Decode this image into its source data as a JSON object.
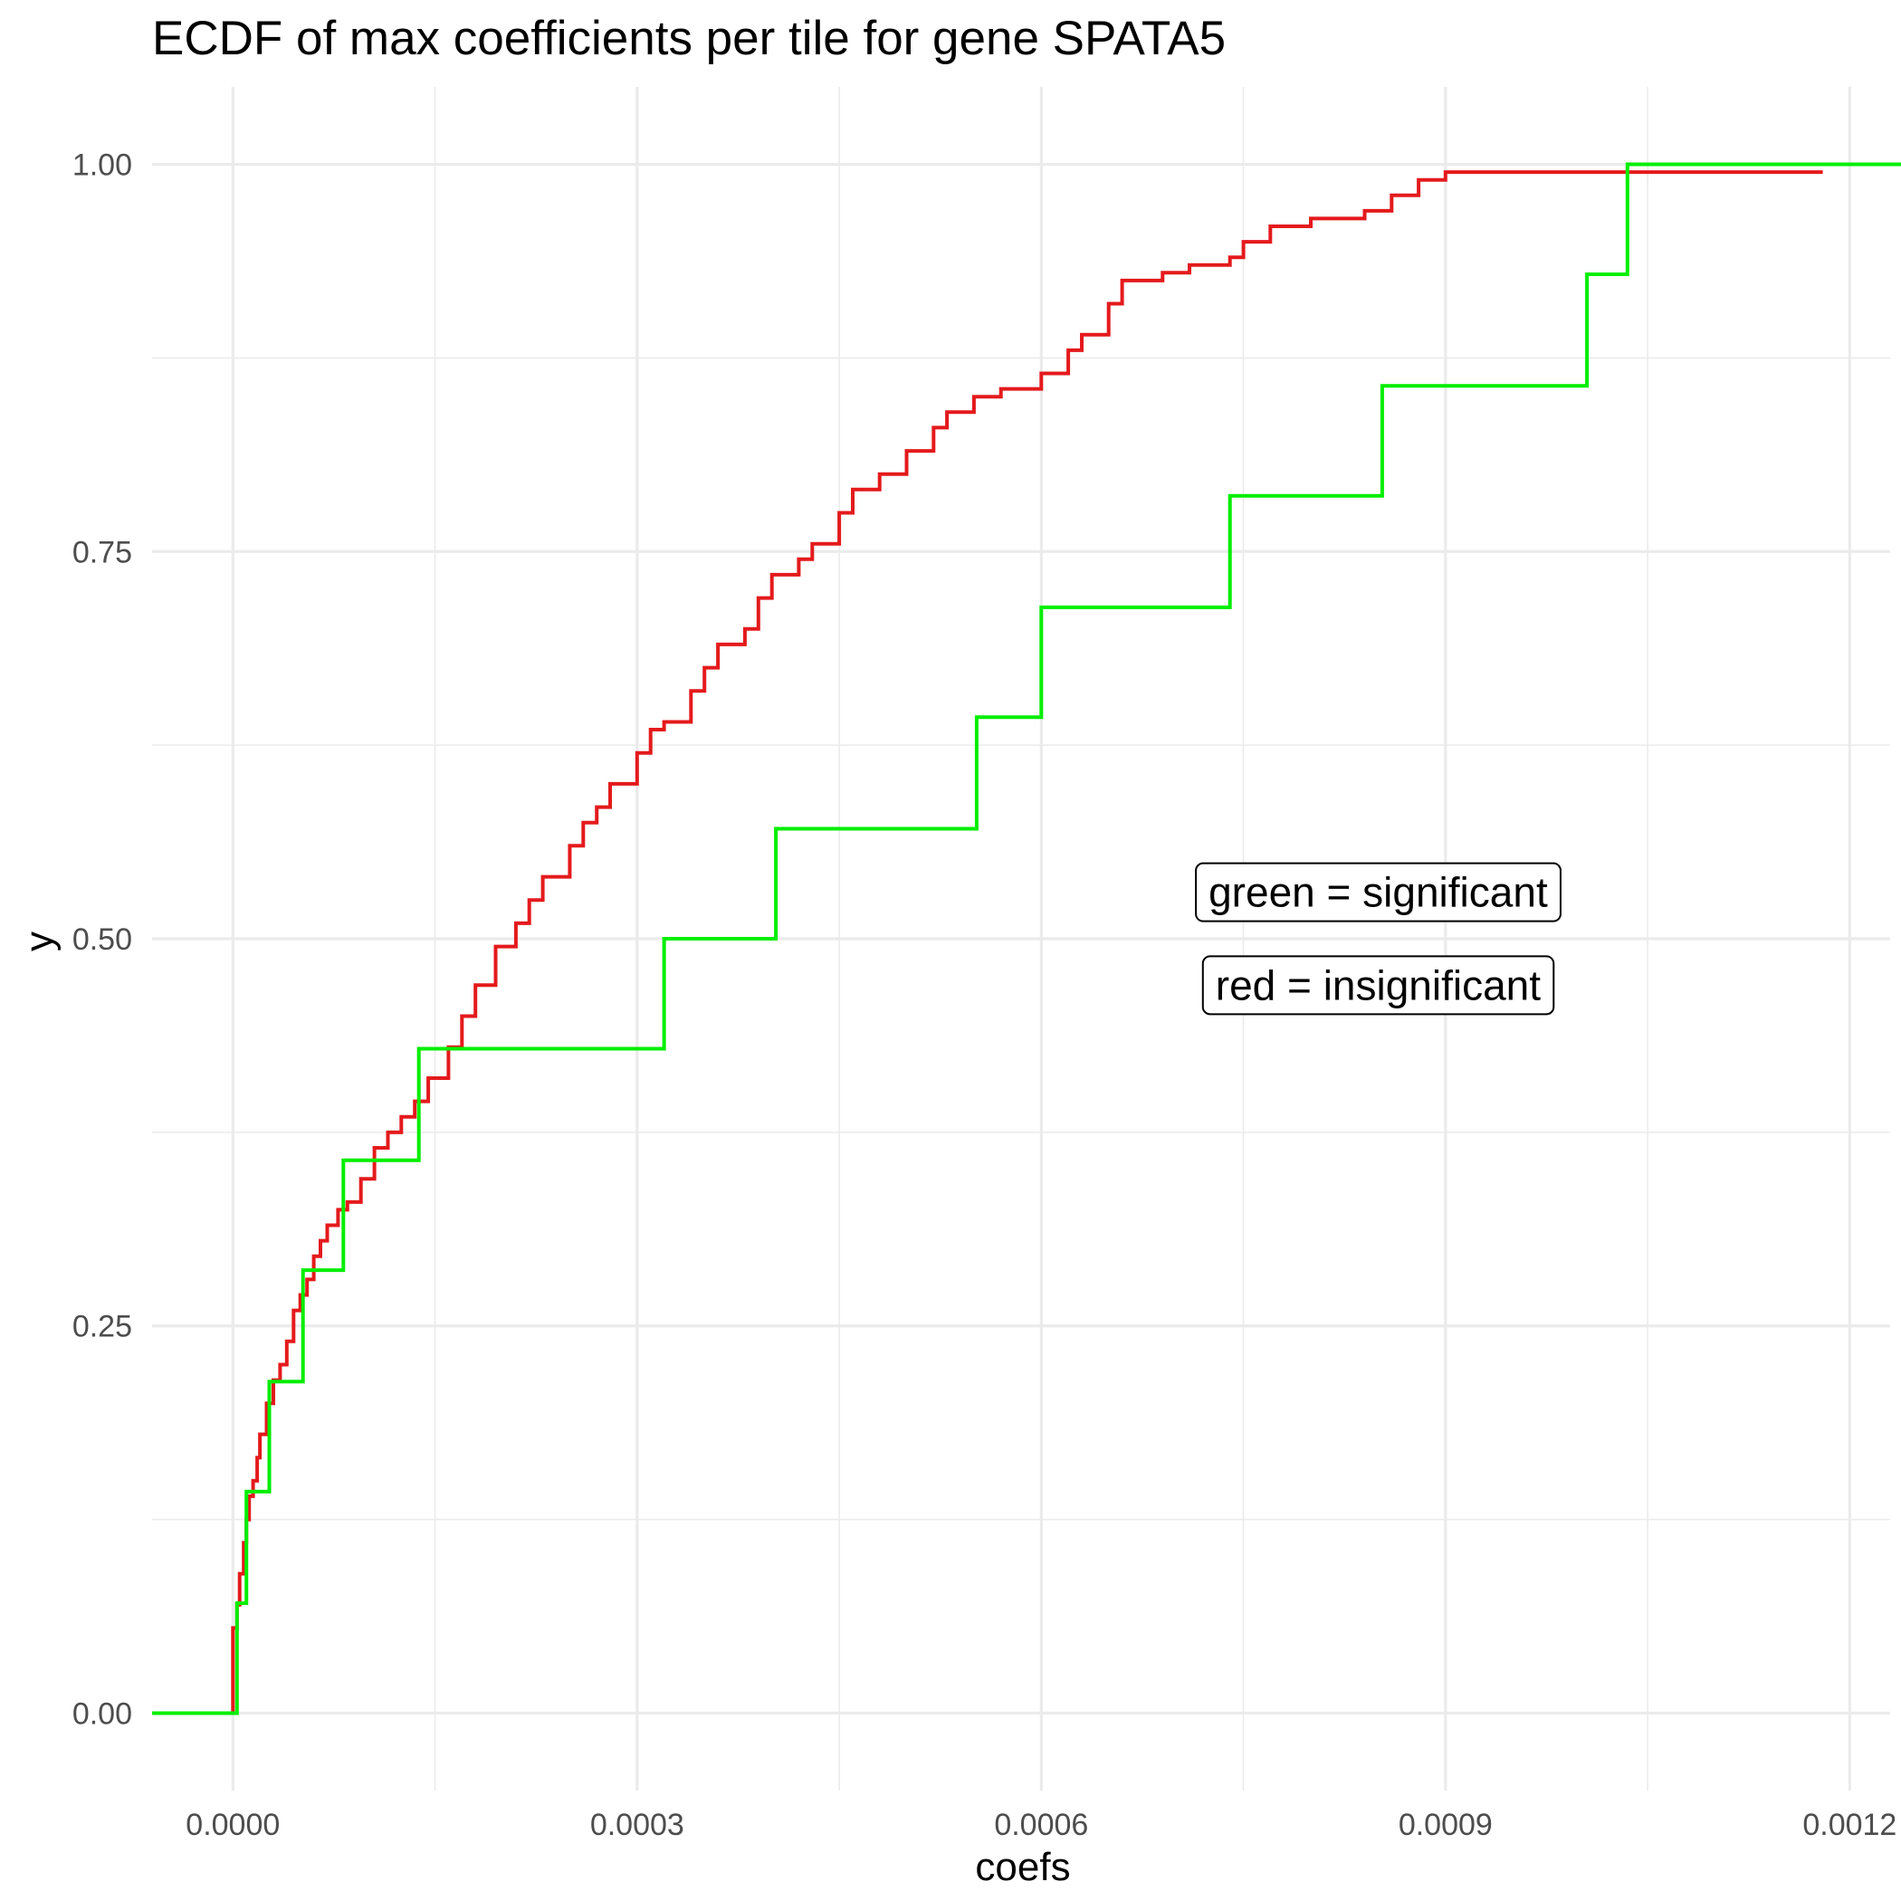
{
  "chart_data": {
    "type": "line",
    "step": true,
    "title": "ECDF of max coefficients per tile for gene SPATA5",
    "xlabel": "coefs",
    "ylabel": "y",
    "xlim": [
      -6e-05,
      0.00123
    ],
    "ylim": [
      -0.05,
      1.05
    ],
    "x_ticks": [
      0.0,
      0.0003,
      0.0006,
      0.0009,
      0.0012
    ],
    "x_tick_labels": [
      "0.0000",
      "0.0003",
      "0.0006",
      "0.0009",
      "0.0012"
    ],
    "y_ticks": [
      0.0,
      0.25,
      0.5,
      0.75,
      1.0
    ],
    "y_tick_labels": [
      "0.00",
      "0.25",
      "0.50",
      "0.75",
      "1.00"
    ],
    "grid": true,
    "legend": "none",
    "annotations": [
      {
        "text": "green = significant",
        "x": 0.00085,
        "y": 0.53
      },
      {
        "text": "red = insignificant",
        "x": 0.00085,
        "y": 0.47
      }
    ],
    "series": [
      {
        "color": "#e41a1c",
        "x": [
          -6e-05,
          0.0,
          0.0,
          3e-06,
          5e-06,
          8e-06,
          1e-05,
          1.2e-05,
          1.5e-05,
          1.8e-05,
          2e-05,
          2.5e-05,
          3e-05,
          3.5e-05,
          4e-05,
          4.5e-05,
          5e-05,
          5.5e-05,
          6e-05,
          6.5e-05,
          7e-05,
          7.8e-05,
          8.5e-05,
          9.5e-05,
          0.000105,
          0.000115,
          0.000125,
          0.000135,
          0.000145,
          0.00016,
          0.00017,
          0.00018,
          0.000195,
          0.00021,
          0.00022,
          0.00023,
          0.00025,
          0.00026,
          0.00027,
          0.00028,
          0.0003,
          0.00031,
          0.00032,
          0.00034,
          0.00035,
          0.00036,
          0.00038,
          0.00039,
          0.0004,
          0.00042,
          0.00043,
          0.00045,
          0.00046,
          0.00048,
          0.0005,
          0.00052,
          0.00053,
          0.00055,
          0.00057,
          0.0006,
          0.00062,
          0.00063,
          0.00065,
          0.00066,
          0.00069,
          0.00071,
          0.00074,
          0.00075,
          0.00077,
          0.0008,
          0.00084,
          0.00086,
          0.00088,
          0.0009,
          0.00118
        ],
        "y": [
          0.0,
          0.0,
          0.055,
          0.07,
          0.09,
          0.11,
          0.125,
          0.14,
          0.15,
          0.165,
          0.18,
          0.2,
          0.215,
          0.225,
          0.24,
          0.26,
          0.27,
          0.28,
          0.295,
          0.305,
          0.315,
          0.325,
          0.33,
          0.345,
          0.365,
          0.375,
          0.385,
          0.395,
          0.41,
          0.43,
          0.45,
          0.47,
          0.495,
          0.51,
          0.525,
          0.54,
          0.56,
          0.575,
          0.585,
          0.6,
          0.62,
          0.635,
          0.64,
          0.66,
          0.675,
          0.69,
          0.7,
          0.72,
          0.735,
          0.745,
          0.755,
          0.775,
          0.79,
          0.8,
          0.815,
          0.83,
          0.84,
          0.85,
          0.855,
          0.865,
          0.88,
          0.89,
          0.91,
          0.925,
          0.93,
          0.935,
          0.94,
          0.95,
          0.96,
          0.965,
          0.97,
          0.98,
          0.99,
          0.995,
          0.995
        ]
      },
      {
        "color": "#00ee00",
        "x": [
          -6e-05,
          3e-06,
          1e-05,
          2.7e-05,
          5.2e-05,
          8.2e-05,
          0.000138,
          0.00032,
          0.000403,
          0.000552,
          0.0006,
          0.00074,
          0.000853,
          0.001005,
          0.001035,
          0.00124
        ],
        "y": [
          0.0,
          0.071,
          0.143,
          0.214,
          0.286,
          0.357,
          0.429,
          0.5,
          0.571,
          0.643,
          0.714,
          0.786,
          0.857,
          0.929,
          1.0,
          1.0
        ]
      }
    ]
  }
}
